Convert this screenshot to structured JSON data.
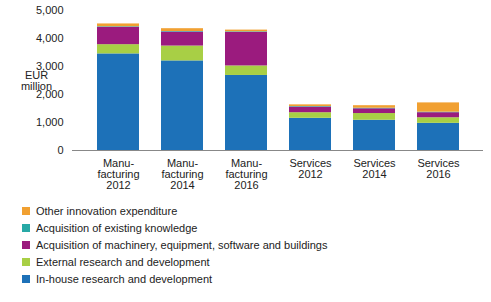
{
  "chart_data": {
    "type": "bar",
    "stacked": true,
    "y_label": "EUR\nmillion",
    "categories": [
      "Manu-\nfacturing\n2012",
      "Manu-\nfacturing\n2014",
      "Manu-\nfacturing\n2016",
      "Services\n2012",
      "Services\n2014",
      "Services\n2016"
    ],
    "series": [
      {
        "name": "In-house research and development",
        "color": "#1d71b8",
        "values": [
          3450,
          3200,
          2680,
          1150,
          1080,
          970
        ]
      },
      {
        "name": "External research and development",
        "color": "#a8cf45",
        "values": [
          330,
          530,
          340,
          200,
          240,
          200
        ]
      },
      {
        "name": "Acquisition of machinery, equipment, software and buildings",
        "color": "#9b1b7e",
        "values": [
          620,
          500,
          1200,
          200,
          170,
          180
        ]
      },
      {
        "name": "Acquisition of existing knowledge",
        "color": "#27a9a6",
        "values": [
          20,
          20,
          20,
          20,
          20,
          20
        ]
      },
      {
        "name": "Other innovation expenditure",
        "color": "#f1a031",
        "values": [
          100,
          100,
          60,
          60,
          90,
          330
        ]
      }
    ],
    "ylim": [
      0,
      5000
    ],
    "yticks": [
      0,
      1000,
      2000,
      3000,
      4000,
      5000
    ],
    "grid": false,
    "legend": "bottom"
  }
}
